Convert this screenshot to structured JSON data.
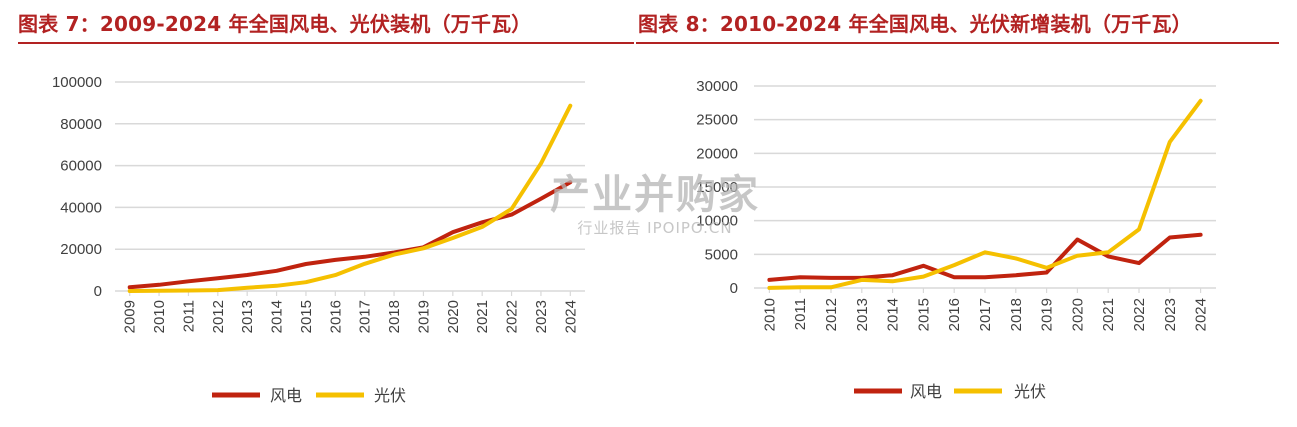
{
  "figures": [
    {
      "title": "图表 7：2009-2024 年全国风电、光伏装机（万千瓦）"
    },
    {
      "title": "图表 8：2010-2024 年全国风电、光伏新增装机（万千瓦）"
    }
  ],
  "watermark": {
    "main": "产业并购家",
    "sub": "行业报告 IPOIPO.CN"
  },
  "colors": {
    "wind": "#c0230f",
    "solar": "#f5c000",
    "grid": "#d9d9d9",
    "title": "#b22222"
  },
  "chart_data": [
    {
      "type": "line",
      "x": [
        "2009",
        "2010",
        "2011",
        "2012",
        "2013",
        "2014",
        "2015",
        "2016",
        "2017",
        "2018",
        "2019",
        "2020",
        "2021",
        "2022",
        "2023",
        "2024"
      ],
      "ylim": [
        0,
        100000
      ],
      "yticks": [
        "0",
        "20000",
        "40000",
        "60000",
        "80000",
        "100000"
      ],
      "grid": true,
      "legend_position": "bottom",
      "series": [
        {
          "name": "风电",
          "values": [
            1760,
            2960,
            4620,
            6140,
            7650,
            9660,
            12900,
            14860,
            16370,
            18430,
            20920,
            28150,
            32850,
            36540,
            44130,
            52070
          ]
        },
        {
          "name": "光伏",
          "values": [
            3,
            86,
            220,
            410,
            1590,
            2490,
            4220,
            7630,
            13020,
            17430,
            20430,
            25350,
            30660,
            39260,
            60950,
            88670
          ]
        }
      ]
    },
    {
      "type": "line",
      "x": [
        "2010",
        "2011",
        "2012",
        "2013",
        "2014",
        "2015",
        "2016",
        "2017",
        "2018",
        "2019",
        "2020",
        "2021",
        "2022",
        "2023",
        "2024"
      ],
      "ylim": [
        0,
        30000
      ],
      "yticks": [
        "0",
        "5000",
        "10000",
        "15000",
        "20000",
        "25000",
        "30000"
      ],
      "grid": true,
      "legend_position": "bottom",
      "series": [
        {
          "name": "风电",
          "values": [
            1200,
            1600,
            1500,
            1500,
            1900,
            3300,
            1600,
            1600,
            1900,
            2300,
            7200,
            4700,
            3700,
            7500,
            7900
          ]
        },
        {
          "name": "光伏",
          "values": [
            20,
            100,
            100,
            1200,
            1000,
            1700,
            3400,
            5300,
            4400,
            3000,
            4800,
            5300,
            8700,
            21700,
            27800
          ]
        }
      ]
    }
  ]
}
